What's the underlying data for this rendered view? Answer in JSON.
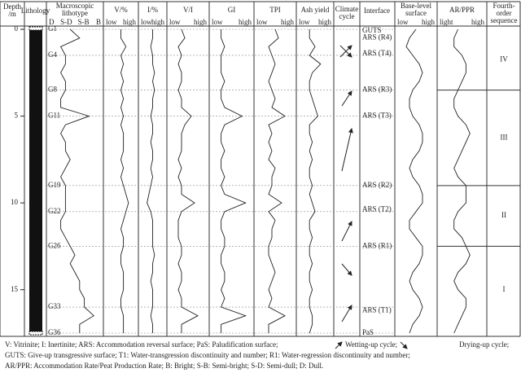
{
  "chart_data": {
    "type": "log-panel",
    "depth_label": [
      "Depth",
      "/m"
    ],
    "depth_ticks": [
      0,
      5,
      10,
      15
    ],
    "depth_range": [
      0,
      17.5
    ],
    "lithology_label": "Lithology",
    "depths": [
      0,
      0.5,
      1,
      1.5,
      2,
      2.5,
      3,
      3.5,
      4,
      4.5,
      5,
      5.5,
      6,
      6.5,
      7,
      7.5,
      8,
      8.5,
      9,
      9.5,
      10,
      10.5,
      11,
      11.5,
      12,
      12.5,
      13,
      13.5,
      14,
      14.5,
      15,
      15.5,
      16,
      16.5,
      17,
      17.5
    ],
    "samples": [
      {
        "label": "G1",
        "index": 0
      },
      {
        "label": "G4",
        "index": 3
      },
      {
        "label": "G8",
        "index": 7
      },
      {
        "label": "G11",
        "index": 10
      },
      {
        "label": "G19",
        "index": 18
      },
      {
        "label": "G22",
        "index": 21
      },
      {
        "label": "G26",
        "index": 25
      },
      {
        "label": "G33",
        "index": 32
      },
      {
        "label": "G36",
        "index": 35
      }
    ],
    "columns": [
      {
        "title": [
          "Macroscopic",
          "lithotype"
        ],
        "scale": [
          "D",
          "S-D",
          "S-B",
          "B"
        ],
        "values": [
          4,
          6,
          2,
          3,
          3,
          2,
          3,
          3,
          2,
          2,
          8,
          3,
          2,
          3,
          3,
          4,
          3,
          2,
          3,
          3,
          3,
          3,
          2,
          2,
          3,
          4,
          5,
          4,
          5,
          6,
          6,
          7,
          7,
          9,
          6,
          6
        ]
      },
      {
        "title": [
          "V/%"
        ],
        "scale": [
          "low",
          "high"
        ],
        "values": [
          5,
          5,
          7,
          5,
          6,
          5,
          6,
          5,
          6,
          5,
          6,
          5,
          6,
          6,
          6,
          5,
          6,
          5,
          6,
          7,
          8,
          7,
          6,
          5,
          6,
          6,
          5,
          5,
          6,
          6,
          6,
          5,
          5,
          6,
          6,
          6
        ]
      },
      {
        "title": [
          "I/%"
        ],
        "scale": [
          "low",
          "high"
        ],
        "values": [
          5,
          5,
          4,
          5,
          5,
          6,
          5,
          6,
          5,
          5,
          4,
          5,
          5,
          4,
          5,
          5,
          4,
          5,
          4,
          3,
          2,
          4,
          5,
          5,
          5,
          5,
          6,
          5,
          5,
          4,
          5,
          5,
          5,
          4,
          5,
          5
        ]
      },
      {
        "title": [
          "V/I"
        ],
        "scale": [
          "low",
          "high"
        ],
        "values": [
          3,
          4,
          2,
          3,
          2,
          3,
          3,
          2,
          3,
          3,
          6,
          4,
          3,
          3,
          3,
          2,
          3,
          2,
          3,
          3,
          7,
          3,
          2,
          2,
          2,
          3,
          3,
          2,
          3,
          3,
          2,
          3,
          3,
          8,
          3,
          3
        ]
      },
      {
        "title": [
          "GI"
        ],
        "scale": [
          "low",
          "high"
        ],
        "values": [
          2,
          2,
          3,
          2,
          2,
          2,
          3,
          2,
          2,
          3,
          8,
          3,
          2,
          2,
          3,
          2,
          2,
          3,
          2,
          3,
          9,
          3,
          2,
          2,
          3,
          3,
          2,
          2,
          3,
          3,
          2,
          3,
          2,
          9,
          2,
          2
        ]
      },
      {
        "title": [
          "TPI"
        ],
        "scale": [
          "low",
          "high"
        ],
        "values": [
          5,
          6,
          3,
          4,
          5,
          4,
          3,
          4,
          5,
          4,
          8,
          3,
          4,
          3,
          4,
          3,
          5,
          4,
          4,
          3,
          7,
          3,
          5,
          4,
          4,
          3,
          3,
          4,
          5,
          4,
          3,
          4,
          3,
          8,
          3,
          3
        ]
      },
      {
        "title": [
          "Ash yield"
        ],
        "scale": [
          "low",
          "high"
        ],
        "values": [
          3,
          3,
          5,
          3,
          7,
          4,
          3,
          3,
          4,
          5,
          6,
          3,
          3,
          4,
          3,
          4,
          3,
          3,
          4,
          3,
          4,
          5,
          3,
          3,
          4,
          3,
          3,
          4,
          3,
          3,
          4,
          3,
          3,
          4,
          4,
          3
        ]
      }
    ],
    "climate_label": [
      "Climate",
      "cycle"
    ],
    "interface_label": "Interface",
    "interfaces": [
      {
        "label": "GUTS",
        "depth": 0
      },
      {
        "label": "ARS (R4)",
        "depth": 0.5
      },
      {
        "label": "ARS (T4)",
        "depth": 1.4
      },
      {
        "label": "ARS (R3)",
        "depth": 3.5
      },
      {
        "label": "ARS (T3)",
        "depth": 5
      },
      {
        "label": "ARS (R2)",
        "depth": 9
      },
      {
        "label": "ARS (T2)",
        "depth": 10.4
      },
      {
        "label": "ARS (R1)",
        "depth": 12.5
      },
      {
        "label": "ARS (T1)",
        "depth": 16.2
      },
      {
        "label": "PaS",
        "depth": 17.5
      }
    ],
    "curves": [
      {
        "title": [
          "Base-level",
          "surface"
        ],
        "scale": [
          "low",
          "high"
        ],
        "values": [
          5,
          3,
          2,
          4,
          6,
          7,
          6,
          4,
          3,
          3,
          4,
          6,
          7,
          7,
          6,
          4,
          3,
          4,
          6,
          7,
          7,
          5,
          3,
          3,
          5,
          7,
          7,
          6,
          4,
          3,
          4,
          6,
          7,
          6,
          4,
          3
        ]
      },
      {
        "title": [
          "AR/PPR"
        ],
        "scale": [
          "light",
          "high"
        ],
        "values": [
          4,
          3,
          3,
          5,
          6,
          6,
          5,
          4,
          3,
          3,
          4,
          6,
          7,
          6,
          5,
          4,
          3,
          4,
          6,
          6,
          6,
          4,
          3,
          3,
          5,
          6,
          7,
          6,
          4,
          3,
          4,
          6,
          6,
          5,
          4,
          3
        ]
      }
    ],
    "sequence_label": [
      "Fourth-",
      "order",
      "sequence"
    ],
    "sequences": [
      {
        "label": "IV",
        "top": 0,
        "bottom": 3.5
      },
      {
        "label": "III",
        "top": 3.5,
        "bottom": 9
      },
      {
        "label": "II",
        "top": 9,
        "bottom": 12.5
      },
      {
        "label": "I",
        "top": 12.5,
        "bottom": 17.5
      }
    ],
    "legend": [
      "V: Vitrinite; I: Inertinite; ARS: Accommodation reversal surface; PaS: Paludification surface;",
      "Wetting-up cycle;",
      "Drying-up cycle;",
      "GUTS: Give-up transgressive surface;  T1: Water-transgression discontinuity and number;  R1: Water-regression discontinuity and number;",
      "AR/PPR: Accommodation Rate/Peat Production Rate; B: Bright; S-B: Semi-bright; S-D: Semi-dull; D: Dull."
    ]
  }
}
